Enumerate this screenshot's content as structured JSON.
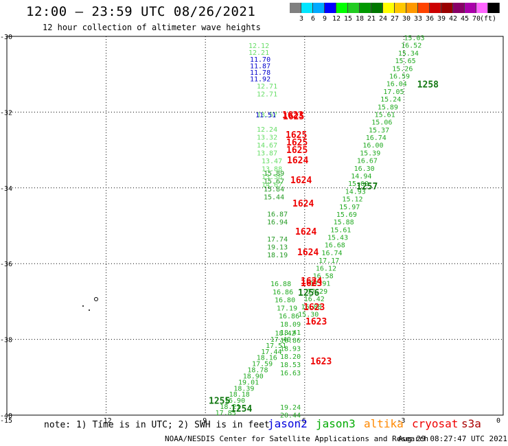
{
  "header": {
    "title": "12:00 – 23:59 UTC 08/26/2021",
    "subtitle": "12 hour collection of altimeter wave heights"
  },
  "color_scale": {
    "colors": [
      "#808080",
      "#00e5ff",
      "#00aaff",
      "#0000ff",
      "#00ff00",
      "#22cc22",
      "#009900",
      "#007700",
      "#ffff00",
      "#ffc800",
      "#ff9900",
      "#ff4400",
      "#cc0000",
      "#990000",
      "#880066",
      "#aa00aa",
      "#ff66ff",
      "#000000"
    ],
    "labels": [
      "3",
      "6",
      "9",
      "12",
      "15",
      "18",
      "21",
      "24",
      "27",
      "30",
      "33",
      "36",
      "39",
      "42",
      "45",
      "70",
      "(ft)"
    ]
  },
  "map": {
    "lon_range": [
      -15,
      0
    ],
    "lat_range": [
      -40,
      -30
    ],
    "x_tick_labels": [
      "-15",
      "-12",
      "-9",
      "-6",
      "-3",
      "0"
    ],
    "y_tick_labels": [
      "-30",
      "-32",
      "-34",
      "-36",
      "-38",
      "-40"
    ]
  },
  "tracks": [
    {
      "name": "jason3-ascending",
      "color": "#22aa22",
      "label": "1258",
      "label_lon": -2.6,
      "label_lat": -31.35,
      "values": [
        "15.03",
        "16.52",
        "15.34",
        "15.65",
        "15.26",
        "16.59",
        "16.04",
        "17.05",
        "15.24",
        "15.89",
        "15.61",
        "15.06",
        "15.37",
        "16.74",
        "16.00",
        "15.39",
        "16.67",
        "16.30",
        "14.94",
        "15.60",
        "14.93",
        "15.12",
        "15.97",
        "15.69",
        "15.88",
        "15.61",
        "15.43",
        "16.68",
        "16.74",
        "17.17",
        "16.12",
        "16.58",
        "17.91",
        "17.29",
        "16.42",
        "16.88",
        "15.30"
      ],
      "start": [
        -3.0,
        -30.1
      ],
      "end": [
        -6.2,
        -37.4
      ]
    },
    {
      "name": "jason3-descending",
      "color": "#22aa22",
      "label": "1255",
      "label_lon": -8.9,
      "label_lat": -39.7,
      "values": [
        "18.42",
        "17.40",
        "17.51",
        "17.44",
        "18.16",
        "17.59",
        "18.78",
        "18.90",
        "19.01",
        "18.39",
        "18.18",
        "16.90",
        "18.21",
        "17.85"
      ],
      "start": [
        -6.9,
        -37.9
      ],
      "end": [
        -8.7,
        -40.0
      ]
    }
  ],
  "left_column": {
    "color_light": "#66dd66",
    "color_blue": "#0000cc",
    "color_green": "#229922",
    "light_values": [
      "12.12",
      "12.21",
      "12.71",
      "12.71",
      "13.57",
      "12.24",
      "13.32",
      "14.67",
      "13.87",
      "13.47",
      "13.88",
      "13.56",
      "14.67"
    ],
    "blue_values": [
      "11.70",
      "11.87",
      "11.78",
      "11.92",
      "11.51"
    ],
    "green_values": [
      "15.89",
      "15.67",
      "15.84",
      "15.44",
      "16.87",
      "16.94",
      "17.74",
      "19.13",
      "18.19"
    ]
  },
  "lower_column": {
    "values": [
      "16.88",
      "16.86",
      "16.80",
      "17.19",
      "16.86",
      "18.09",
      "18.41",
      "16.86",
      "18.93",
      "18.20",
      "18.53",
      "16.63",
      "19.24",
      "20.44"
    ]
  },
  "cryosat": {
    "color": "#ee0000",
    "labels": [
      "1623",
      "1625",
      "1625",
      "1625",
      "1625",
      "1624",
      "1624",
      "1624",
      "1624",
      "1624",
      "1624",
      "1623",
      "1623",
      "1623",
      "1623"
    ]
  },
  "extra_labels": [
    {
      "text": "1257",
      "color": "#117711"
    },
    {
      "text": "1256",
      "color": "#117711"
    },
    {
      "text": "1254",
      "color": "#117711"
    }
  ],
  "footer": {
    "note": "note:  1) Time is in UTC; 2) SWH is in feet",
    "legend": [
      {
        "name": "jason2",
        "color": "#0000dd"
      },
      {
        "name": "jason3",
        "color": "#00aa00"
      },
      {
        "name": "altika",
        "color": "#ff8800"
      },
      {
        "name": "cryosat",
        "color": "#ee0000"
      },
      {
        "name": "s3a",
        "color": "#aa0000"
      }
    ],
    "credit": "NOAA/NESDIS Center for Satellite Applications and Research",
    "timestamp": "Aug 29 08:27:47 UTC 2021"
  }
}
